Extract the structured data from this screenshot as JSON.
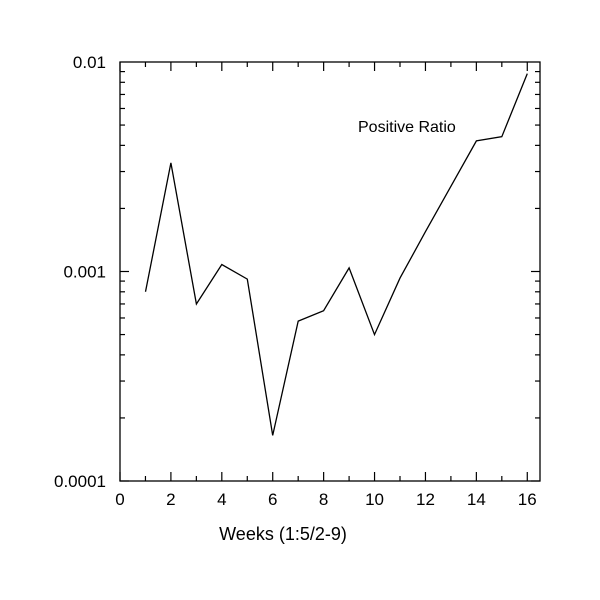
{
  "chart_data": {
    "type": "line",
    "title": "",
    "xlabel": "Weeks (1:5/2-9)",
    "ylabel": "",
    "y_scale": "log",
    "xlim": [
      0,
      16.5
    ],
    "ylim": [
      0.0001,
      0.01
    ],
    "grid": false,
    "x_ticks": [
      0,
      2,
      4,
      6,
      8,
      10,
      12,
      14,
      16
    ],
    "x_tick_labels": [
      "0",
      "2",
      "4",
      "6",
      "8",
      "10",
      "12",
      "14",
      "16"
    ],
    "y_ticks": [
      0.0001,
      0.001,
      0.01
    ],
    "y_tick_labels": [
      "0.0001",
      "0.001",
      "0.01"
    ],
    "annotation": "Positive Ratio",
    "series": [
      {
        "name": "Positive Ratio",
        "color": "#000000",
        "x": [
          1,
          2,
          3,
          4,
          5,
          6,
          7,
          8,
          9,
          10,
          11,
          12,
          13,
          14,
          15,
          16
        ],
        "y": [
          0.0008,
          0.0033,
          0.0007,
          0.00108,
          0.00092,
          0.000165,
          0.00058,
          0.00065,
          0.00104,
          0.0005,
          0.00093,
          0.00155,
          0.00255,
          0.0042,
          0.0044,
          0.0088
        ]
      }
    ]
  }
}
